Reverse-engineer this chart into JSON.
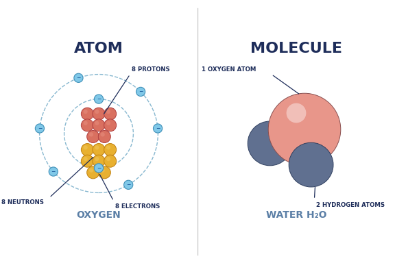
{
  "bg_color": "#ffffff",
  "divider_color": "#cccccc",
  "title_color": "#1e2d5a",
  "label_color": "#1e2d5a",
  "subtitle_color": "#5b7fa6",
  "atom_title": "ATOM",
  "molecule_title": "MOLECULE",
  "atom_subtitle": "OXYGEN",
  "molecule_subtitle": "WATER H₂O",
  "proton_color_face": "#d97060",
  "proton_color_edge": "#b04040",
  "proton_color_hi": "#e89080",
  "neutron_color_face": "#e8b030",
  "neutron_color_edge": "#c08010",
  "neutron_color_hi": "#f0c860",
  "electron_color_face": "#80c8e8",
  "electron_color_edge": "#4090b8",
  "orbit_color": "#88b8d0",
  "oxygen_ball_face": "#e8968a",
  "oxygen_ball_edge": "#8a5050",
  "hydrogen_ball_face": "#607090",
  "hydrogen_ball_edge": "#304060",
  "label_8protons": "8 PROTONS",
  "label_8neutrons": "8 NEUTRONS",
  "label_8electrons": "8 ELECTRONS",
  "label_1oxygen": "1 OXYGEN ATOM",
  "label_2hydrogen": "2 HYDROGEN ATOMS",
  "inner_r": 0.42,
  "outer_r": 0.72,
  "electron_r": 0.055,
  "proton_r": 0.075,
  "neutron_r": 0.075
}
